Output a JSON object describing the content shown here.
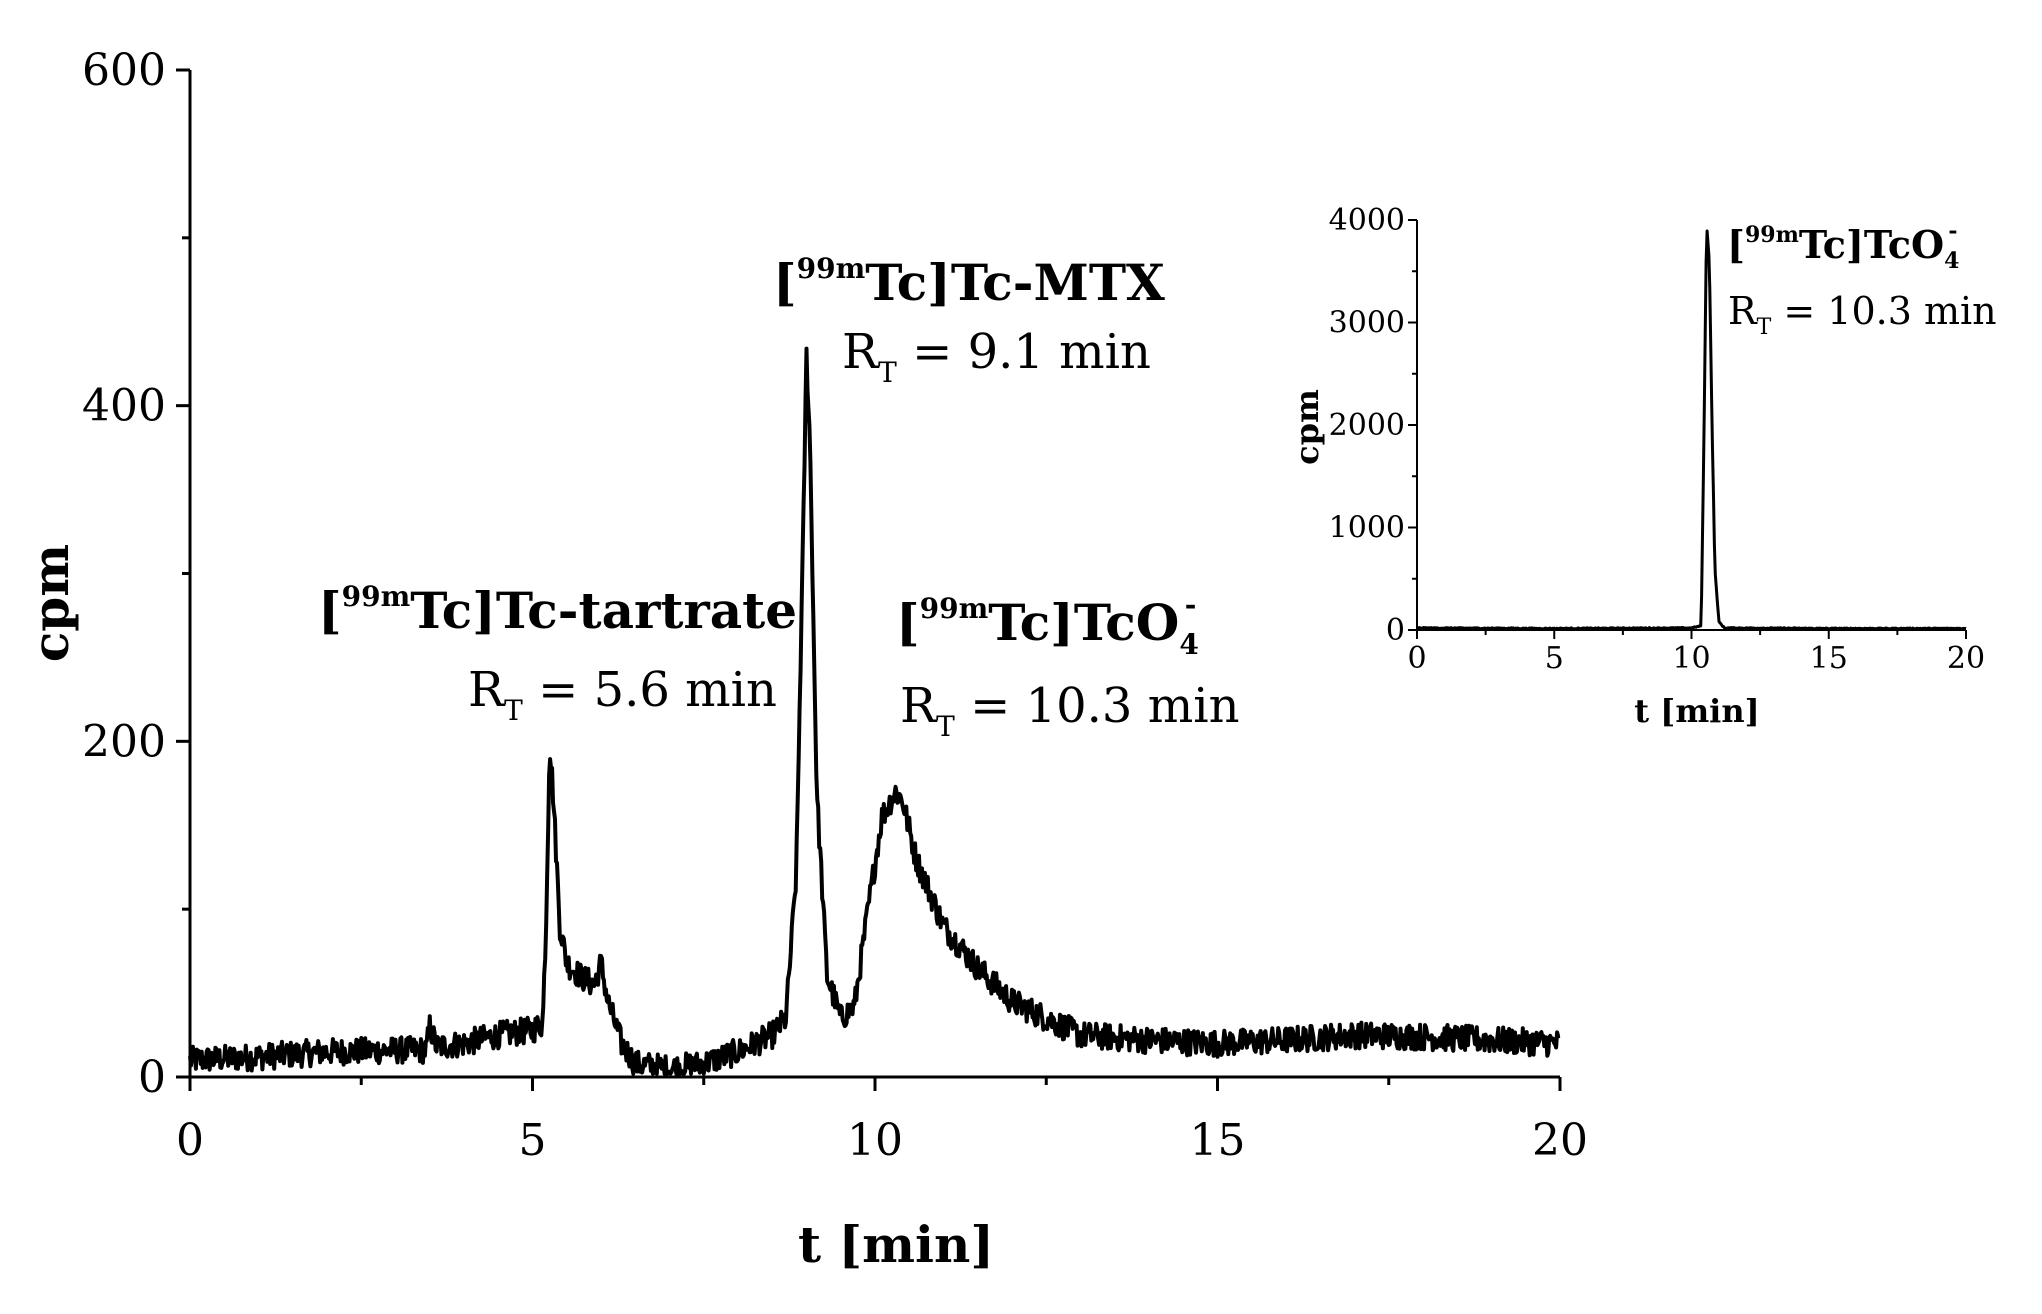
{
  "chart_data": [
    {
      "type": "line",
      "xlabel": "t [min]",
      "ylabel": "cpm",
      "xlim": [
        0,
        20
      ],
      "ylim": [
        0,
        600
      ],
      "xticks": [
        "0",
        "5",
        "10",
        "15",
        "20"
      ],
      "yticks": [
        "0",
        "200",
        "400",
        "600"
      ],
      "grid": false,
      "series": [
        {
          "x": [
            0,
            1,
            2,
            3,
            3.45,
            3.5,
            3.6,
            4,
            4.5,
            5,
            5.15,
            5.2,
            5.25,
            5.3,
            5.4,
            5.5,
            5.7,
            5.9,
            6.0,
            6.1,
            6.3,
            6.5,
            7,
            7.5,
            8,
            8.5,
            8.7,
            8.85,
            8.95,
            9.0,
            9.05,
            9.15,
            9.3,
            9.5,
            9.7,
            9.9,
            10.1,
            10.3,
            10.4,
            10.6,
            10.8,
            11,
            11.5,
            12,
            12.5,
            13,
            14,
            15,
            16,
            17,
            18,
            19,
            20
          ],
          "y": [
            10,
            12,
            15,
            16,
            16,
            30,
            18,
            20,
            25,
            28,
            32,
            95,
            200,
            170,
            90,
            68,
            60,
            55,
            68,
            45,
            20,
            8,
            5,
            8,
            15,
            25,
            35,
            120,
            320,
            430,
            380,
            170,
            60,
            35,
            42,
            100,
            155,
            170,
            165,
            130,
            110,
            90,
            65,
            45,
            35,
            25,
            22,
            20,
            22,
            25,
            24,
            22,
            20
          ]
        }
      ],
      "annotations": [
        {
          "prefix": "[",
          "sup": "99m",
          "name": "Tc]Tc-tartrate",
          "rt_label": "R",
          "rt_sub": "T",
          "rt_value": " = 5.6 min"
        },
        {
          "prefix": "[",
          "sup": "99m",
          "name": "Tc]Tc-MTX",
          "rt_label": "R",
          "rt_sub": "T",
          "rt_value": " = 9.1 min"
        },
        {
          "prefix": "[",
          "sup": "99m",
          "name": "Tc]TcO",
          "name_sub": "4",
          "name_sup": "-",
          "rt_label": "R",
          "rt_sub": "T",
          "rt_value": " = 10.3 min"
        }
      ]
    },
    {
      "type": "line",
      "xlabel": "t [min]",
      "ylabel": "cpm",
      "xlim": [
        0,
        20
      ],
      "ylim": [
        0,
        4000
      ],
      "xticks": [
        "0",
        "5",
        "10",
        "15",
        "20"
      ],
      "yticks": [
        "0",
        "1000",
        "2000",
        "3000",
        "4000"
      ],
      "grid": false,
      "series": [
        {
          "x": [
            0,
            5,
            10,
            10.35,
            10.45,
            10.55,
            10.65,
            10.75,
            10.85,
            11.0,
            11.2,
            15,
            20
          ],
          "y": [
            20,
            15,
            20,
            40,
            1800,
            3950,
            3600,
            2000,
            600,
            80,
            20,
            15,
            15
          ]
        }
      ],
      "annotations": [
        {
          "prefix": "[",
          "sup": "99m",
          "name": "Tc]TcO",
          "name_sub": "4",
          "name_sup": "-",
          "rt_label": "R",
          "rt_sub": "T",
          "rt_value": " = 10.3 min"
        }
      ]
    }
  ]
}
